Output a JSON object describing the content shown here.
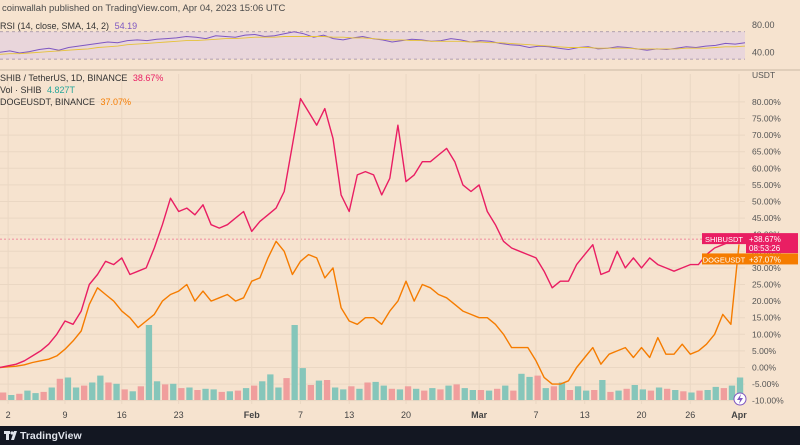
{
  "header": {
    "publisher_text": "coinwallah published on TradingView.com, Apr 04, 2023 15:06 UTC"
  },
  "rsi": {
    "label": "RSI (14, close, SMA, 14, 2)",
    "value_text": "54.19",
    "color": "#7e57c2"
  },
  "legend": {
    "shib": {
      "name": "SHIB / TetherUS, 1D, BINANCE",
      "value": "38.67%",
      "color": "#e91e63"
    },
    "vol": {
      "name": "Vol · SHIB",
      "value": "4.827T",
      "color": "#26a69a"
    },
    "doge": {
      "name": "DOGEUSDT, BINANCE",
      "value": "37.07%",
      "color": "#f57c00"
    }
  },
  "price_tags": {
    "shib": {
      "symbol": "SHIBUSDT",
      "value": "+38.67%",
      "countdown": "08:53:26"
    },
    "doge": {
      "symbol": "DOGEUSDT",
      "value": "+37.07%"
    }
  },
  "footer": {
    "brand": "TradingView"
  },
  "chart_data": [
    {
      "type": "line",
      "title": "RSI (14, close, SMA, 14, 2)",
      "ylim": [
        20,
        90
      ],
      "y_ticks": [
        "80.00",
        "40.00"
      ],
      "bands": {
        "upper": 70,
        "lower": 30
      },
      "series": [
        {
          "name": "RSI",
          "color": "#7e57c2",
          "values": [
            40,
            42,
            39,
            41,
            44,
            46,
            43,
            47,
            49,
            51,
            53,
            55,
            54,
            57,
            58,
            57,
            59,
            60,
            61,
            63,
            62,
            60,
            64,
            63,
            62,
            65,
            66,
            63,
            64,
            67,
            70,
            67,
            62,
            65,
            60,
            58,
            61,
            63,
            60,
            58,
            55,
            57,
            59,
            58,
            56,
            57,
            60,
            58,
            55,
            57,
            56,
            53,
            51,
            50,
            47,
            49,
            48,
            46,
            44,
            47,
            48,
            45,
            46,
            48,
            47,
            45,
            43,
            45,
            44,
            46,
            48,
            47,
            49,
            50,
            53,
            52,
            54
          ]
        },
        {
          "name": "SMA",
          "color": "#e6c23a",
          "values": [
            37,
            38,
            38,
            39,
            40,
            41,
            42,
            43,
            44,
            45,
            47,
            48,
            49,
            51,
            52,
            53,
            54,
            55,
            56,
            57,
            57,
            58,
            59,
            60,
            60,
            61,
            62,
            62,
            62,
            63,
            63,
            63,
            63,
            63,
            62,
            62,
            61,
            61,
            60,
            59,
            58,
            58,
            57,
            57,
            56,
            56,
            56,
            56,
            55,
            55,
            54,
            54,
            53,
            52,
            51,
            50,
            49,
            48,
            47,
            47,
            47,
            46,
            46,
            46,
            46,
            45,
            45,
            45,
            45,
            45,
            46,
            46,
            46,
            47,
            48,
            48,
            49
          ]
        }
      ]
    },
    {
      "type": "line",
      "ylabel": "USDT",
      "ylim": [
        -11,
        86
      ],
      "y_ticks": [
        "80.00%",
        "75.00%",
        "70.00%",
        "65.00%",
        "60.00%",
        "55.00%",
        "50.00%",
        "45.00%",
        "40.00%",
        "35.00%",
        "30.00%",
        "25.00%",
        "20.00%",
        "15.00%",
        "10.00%",
        "5.00%",
        "0.00%",
        "-5.00%",
        "-10.00%"
      ],
      "x_tick_labels": [
        "2",
        "9",
        "16",
        "23",
        "Feb",
        "7",
        "13",
        "20",
        "Mar",
        "7",
        "13",
        "20",
        "26",
        "Apr"
      ],
      "series": [
        {
          "name": "SHIB / TetherUS, 1D, BINANCE",
          "color": "#e91e63",
          "values": [
            0,
            0.5,
            1,
            2,
            3.5,
            5,
            7,
            10,
            14,
            13,
            17,
            25,
            28,
            32,
            31,
            33,
            28,
            29,
            30,
            36,
            43,
            51,
            47,
            48,
            46,
            49,
            43,
            42,
            43,
            45,
            47,
            41,
            44,
            46,
            48,
            53,
            67,
            81,
            77,
            73,
            78,
            69,
            52,
            47,
            58,
            59,
            58,
            52,
            57,
            73,
            56,
            58,
            62,
            62,
            64,
            66,
            62,
            55,
            53,
            55,
            47,
            43,
            38,
            36,
            35,
            34,
            33,
            29,
            24,
            26,
            26,
            31,
            34,
            37,
            28,
            29,
            35,
            30,
            33,
            30,
            33,
            31,
            30,
            29,
            30,
            31,
            31,
            34,
            36,
            37,
            38,
            38.67
          ]
        },
        {
          "name": "DOGEUSDT, BINANCE",
          "color": "#f57c00",
          "values": [
            0,
            0.2,
            0.4,
            0.8,
            1.5,
            2,
            2.5,
            3.5,
            5.5,
            8,
            11,
            19,
            24,
            22,
            20,
            17,
            15,
            12,
            14,
            16,
            20,
            22,
            23,
            25,
            20,
            23,
            20,
            21,
            22,
            20,
            21,
            26,
            27,
            33,
            38,
            35,
            28,
            32,
            34,
            33,
            27,
            30,
            18,
            14,
            13,
            15,
            15,
            13,
            17,
            20,
            26,
            20,
            25,
            24,
            22,
            21,
            19,
            17,
            16,
            15,
            15,
            13,
            10,
            6,
            6,
            6,
            2,
            -3,
            -5,
            -5,
            -4,
            0,
            3,
            6,
            1,
            4,
            5,
            6,
            3,
            6,
            3,
            9,
            4,
            4,
            7,
            4,
            5,
            7,
            10,
            16,
            13,
            37.07
          ]
        },
        {
          "name": "Vol · SHIB",
          "type": "bar",
          "color": "#26a69a",
          "down_color": "#ef5350",
          "values": [
            1.2,
            0.8,
            1.0,
            1.5,
            1.1,
            1.3,
            2.0,
            3.4,
            3.6,
            2.0,
            2.3,
            2.8,
            3.9,
            2.8,
            2.6,
            1.7,
            1.4,
            2.2,
            12.0,
            3.0,
            2.5,
            2.6,
            1.9,
            2.0,
            1.6,
            1.8,
            1.7,
            1.3,
            1.4,
            1.5,
            1.9,
            2.3,
            3.0,
            4.1,
            2.0,
            3.5,
            12.0,
            5.1,
            2.4,
            3.1,
            3.2,
            2.0,
            1.7,
            2.2,
            1.8,
            2.8,
            2.9,
            2.3,
            1.8,
            1.7,
            2.2,
            1.8,
            1.5,
            1.9,
            1.7,
            2.3,
            2.5,
            1.9,
            1.6,
            1.6,
            1.5,
            1.8,
            2.3,
            1.5,
            4.2,
            3.7,
            3.9,
            1.9,
            2.2,
            2.8,
            1.6,
            2.2,
            1.5,
            1.6,
            3.2,
            1.3,
            1.5,
            1.8,
            2.4,
            1.7,
            1.5,
            2.0,
            1.8,
            1.6,
            1.4,
            1.2,
            1.5,
            1.6,
            2.1,
            1.9,
            2.3,
            3.6
          ],
          "down_days": [
            0,
            2,
            5,
            7,
            10,
            13,
            15,
            17,
            20,
            22,
            24,
            27,
            29,
            31,
            35,
            38,
            40,
            43,
            45,
            48,
            50,
            52,
            54,
            56,
            59,
            61,
            63,
            66,
            68,
            70,
            73,
            75,
            77,
            80,
            82,
            84,
            86,
            89
          ]
        }
      ]
    }
  ]
}
